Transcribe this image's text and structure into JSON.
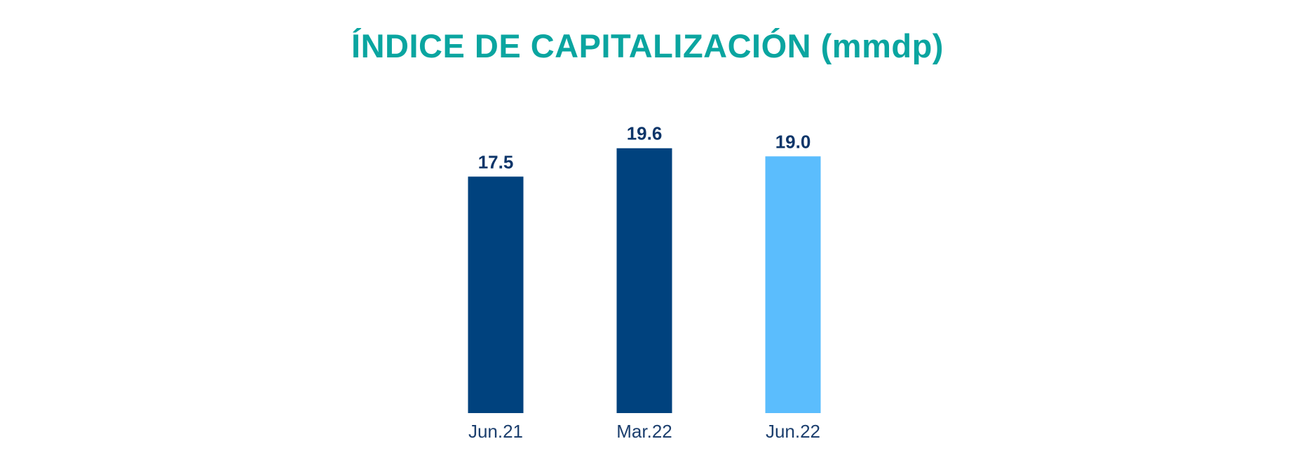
{
  "chart_data": {
    "type": "bar",
    "title": "ÍNDICE DE CAPITALIZACIÓN (mmdp)",
    "categories": [
      "Jun.21",
      "Mar.22",
      "Jun.22"
    ],
    "values": [
      17.5,
      19.6,
      19.0
    ],
    "value_labels": [
      "17.5",
      "19.6",
      "19.0"
    ],
    "bar_colors": [
      "#00427e",
      "#00427e",
      "#5bbdfd"
    ],
    "xlabel": "",
    "ylabel": "",
    "ylim": [
      0,
      20
    ],
    "grid": false,
    "legend": "none"
  },
  "colors": {
    "title": "#0aa5a0",
    "value_label": "#0d3569",
    "tick_label": "#1c3f6e"
  }
}
